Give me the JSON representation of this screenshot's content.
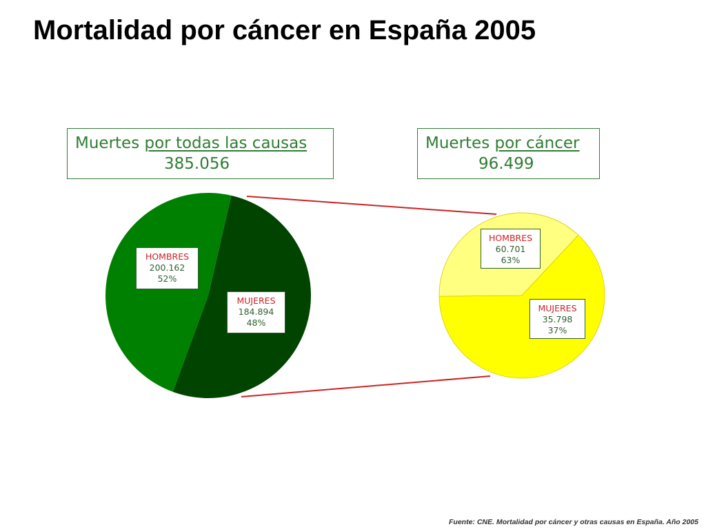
{
  "page": {
    "title": "Mortalidad por cáncer en España 2005",
    "source": "Fuente: CNE.  Mortalidad por cáncer y otras causas en España. Año 2005"
  },
  "colors": {
    "men_all": "#004400",
    "women_all": "#008000",
    "men_cancer": "#ffff00",
    "women_cancer": "#ffff80",
    "connector": "#cc2222",
    "box_border": "#2e7d32",
    "label_name": "#cc2222",
    "label_value": "#2e5e2e"
  },
  "chart_data": [
    {
      "type": "pie",
      "title_prefix": "Muertes ",
      "title_underlined": "por todas las causas",
      "total": "385.056",
      "slices": [
        {
          "name": "HOMBRES",
          "label": "200.162",
          "percent_label": "52%",
          "value": 200162,
          "percent": 52,
          "color": "#004400"
        },
        {
          "name": "MUJERES",
          "label": "184.894",
          "percent_label": "48%",
          "value": 184894,
          "percent": 48,
          "color": "#008000"
        }
      ]
    },
    {
      "type": "pie",
      "title_prefix": "Muertes ",
      "title_underlined": "por cáncer",
      "total": "96.499",
      "slices": [
        {
          "name": "HOMBRES",
          "label": "60.701",
          "percent_label": "63%",
          "value": 60701,
          "percent": 63,
          "color": "#ffff00"
        },
        {
          "name": "MUJERES",
          "label": "35.798",
          "percent_label": "37%",
          "value": 35798,
          "percent": 37,
          "color": "#ffff80"
        }
      ]
    }
  ]
}
